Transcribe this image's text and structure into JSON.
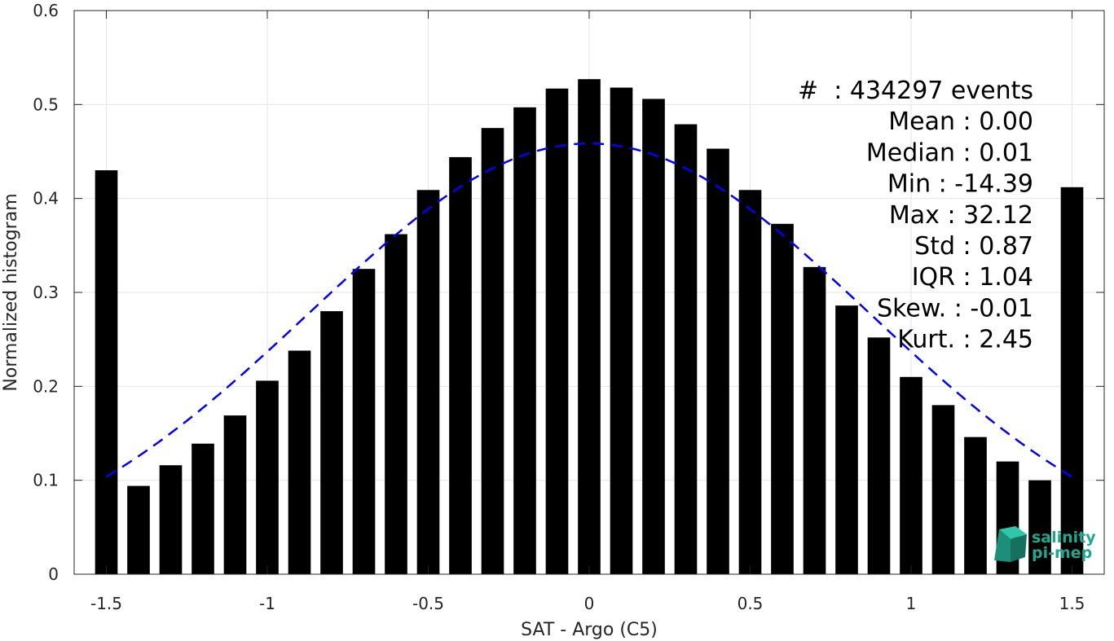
{
  "chart_data": {
    "type": "bar",
    "xlabel": "SAT - Argo (C5)",
    "ylabel": "Normalized histogram",
    "xlim": [
      -1.6,
      1.6
    ],
    "ylim": [
      0,
      0.6
    ],
    "xticks": [
      -1.5,
      -1,
      -0.5,
      0,
      0.5,
      1,
      1.5
    ],
    "xtick_labels": [
      "-1.5",
      "-1",
      "-0.5",
      "0",
      "0.5",
      "1",
      "1.5"
    ],
    "yticks": [
      0,
      0.1,
      0.2,
      0.3,
      0.4,
      0.5,
      0.6
    ],
    "ytick_labels": [
      "0",
      "0.1",
      "0.2",
      "0.3",
      "0.4",
      "0.5",
      "0.6"
    ],
    "grid": true,
    "bar_width": 0.07,
    "x": [
      -1.5,
      -1.4,
      -1.3,
      -1.2,
      -1.1,
      -1.0,
      -0.9,
      -0.8,
      -0.7,
      -0.6,
      -0.5,
      -0.4,
      -0.3,
      -0.2,
      -0.1,
      0.0,
      0.1,
      0.2,
      0.3,
      0.4,
      0.5,
      0.6,
      0.7,
      0.8,
      0.9,
      1.0,
      1.1,
      1.2,
      1.3,
      1.4,
      1.5
    ],
    "values": [
      0.43,
      0.094,
      0.116,
      0.139,
      0.169,
      0.206,
      0.238,
      0.28,
      0.325,
      0.362,
      0.409,
      0.444,
      0.475,
      0.497,
      0.517,
      0.527,
      0.518,
      0.506,
      0.479,
      0.453,
      0.409,
      0.373,
      0.327,
      0.286,
      0.252,
      0.21,
      0.18,
      0.146,
      0.12,
      0.1,
      0.412
    ],
    "fit_curve": {
      "style": "dashed",
      "color": "#0000ff",
      "mean": 0.0,
      "std": 0.87
    },
    "bar_color": "#000000",
    "stats": [
      "#  : 434297 events",
      "Mean : 0.00",
      "Median : 0.01",
      "Min : -14.39",
      "Max : 32.12",
      "Std : 0.87",
      "IQR : 1.04",
      "Skew. : -0.01",
      "Kurt. : 2.45"
    ]
  },
  "logo": {
    "line1": "salinity",
    "line2": "pi-mep",
    "color": "#1fa88f"
  }
}
